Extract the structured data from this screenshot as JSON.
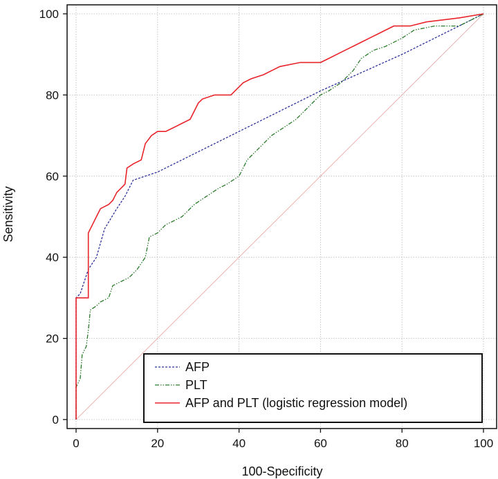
{
  "chart_data": {
    "type": "line",
    "title": "",
    "xlabel": "100-Specificity",
    "ylabel": "Sensitivity",
    "xlim": [
      0,
      100
    ],
    "ylim": [
      0,
      100
    ],
    "xticks": [
      "0",
      "20",
      "40",
      "60",
      "80",
      "100"
    ],
    "yticks": [
      "0",
      "20",
      "40",
      "60",
      "80",
      "100"
    ],
    "grid": true,
    "legend_position": "bottom-right",
    "series": [
      {
        "name": "AFP",
        "color": "#2b2f9a",
        "style": "dashed",
        "points": [
          [
            0,
            0
          ],
          [
            0,
            30
          ],
          [
            1,
            31
          ],
          [
            3,
            37
          ],
          [
            5,
            40
          ],
          [
            7,
            47
          ],
          [
            10,
            52
          ],
          [
            12,
            55
          ],
          [
            14,
            59
          ],
          [
            20,
            61
          ],
          [
            40,
            71
          ],
          [
            60,
            81
          ],
          [
            80,
            90
          ],
          [
            100,
            100
          ]
        ]
      },
      {
        "name": "PLT",
        "color": "#2a7a2a",
        "style": "dashdot",
        "points": [
          [
            0,
            0
          ],
          [
            0,
            8
          ],
          [
            1,
            10
          ],
          [
            1.5,
            16
          ],
          [
            2.5,
            18
          ],
          [
            3,
            22
          ],
          [
            3.5,
            27
          ],
          [
            5,
            28
          ],
          [
            6,
            29
          ],
          [
            8,
            30
          ],
          [
            9,
            33
          ],
          [
            11,
            34
          ],
          [
            13,
            35
          ],
          [
            15,
            37
          ],
          [
            17,
            40
          ],
          [
            18,
            45
          ],
          [
            20,
            46
          ],
          [
            22,
            48
          ],
          [
            24,
            49
          ],
          [
            26,
            50
          ],
          [
            29,
            53
          ],
          [
            32,
            55
          ],
          [
            35,
            57
          ],
          [
            37,
            58
          ],
          [
            40,
            60
          ],
          [
            42,
            64
          ],
          [
            45,
            67
          ],
          [
            48,
            70
          ],
          [
            51,
            72
          ],
          [
            54,
            74
          ],
          [
            56,
            76
          ],
          [
            60,
            80
          ],
          [
            62,
            81
          ],
          [
            65,
            83
          ],
          [
            68,
            86
          ],
          [
            70,
            89
          ],
          [
            73,
            91
          ],
          [
            76,
            92
          ],
          [
            80,
            94
          ],
          [
            83,
            96
          ],
          [
            88,
            97
          ],
          [
            94,
            97
          ],
          [
            100,
            100
          ]
        ]
      },
      {
        "name": "AFP and PLT (logistic regression model)",
        "color": "#e8232a",
        "style": "solid",
        "points": [
          [
            0,
            0
          ],
          [
            0,
            30
          ],
          [
            3,
            30
          ],
          [
            3,
            46
          ],
          [
            4,
            48
          ],
          [
            5,
            50
          ],
          [
            6,
            52
          ],
          [
            8,
            53
          ],
          [
            9,
            54
          ],
          [
            10,
            56
          ],
          [
            11,
            57
          ],
          [
            12,
            58
          ],
          [
            12.5,
            62
          ],
          [
            14,
            63
          ],
          [
            16,
            64
          ],
          [
            17,
            68
          ],
          [
            18.5,
            70
          ],
          [
            20,
            71
          ],
          [
            22,
            71
          ],
          [
            24,
            72
          ],
          [
            26,
            73
          ],
          [
            28,
            74
          ],
          [
            29,
            76
          ],
          [
            30,
            78
          ],
          [
            31,
            79
          ],
          [
            34,
            80
          ],
          [
            38,
            80
          ],
          [
            40,
            82
          ],
          [
            41,
            83
          ],
          [
            43,
            84
          ],
          [
            46,
            85
          ],
          [
            48,
            86
          ],
          [
            50,
            87
          ],
          [
            55,
            88
          ],
          [
            60,
            88
          ],
          [
            62,
            89
          ],
          [
            64,
            90
          ],
          [
            66,
            91
          ],
          [
            68,
            92
          ],
          [
            70,
            93
          ],
          [
            72,
            94
          ],
          [
            74,
            95
          ],
          [
            76,
            96
          ],
          [
            78,
            97
          ],
          [
            82,
            97
          ],
          [
            86,
            98
          ],
          [
            94,
            99
          ],
          [
            100,
            100
          ]
        ]
      },
      {
        "name": "reference",
        "color": "#e8a0a0",
        "style": "thin",
        "points": [
          [
            0,
            0
          ],
          [
            100,
            100
          ]
        ]
      }
    ]
  },
  "legend": {
    "items": [
      {
        "label": "AFP"
      },
      {
        "label": "PLT"
      },
      {
        "label": "AFP and PLT (logistic regression model)"
      }
    ]
  }
}
